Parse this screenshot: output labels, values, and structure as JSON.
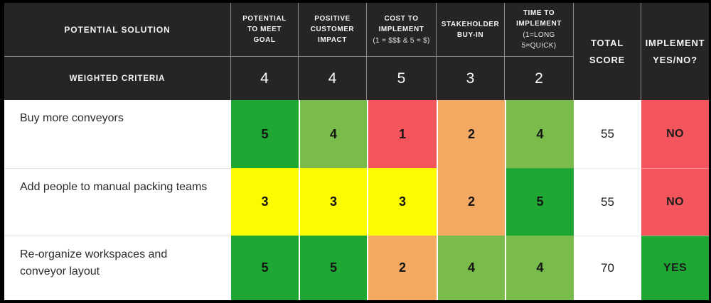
{
  "colors": {
    "header_bg": "#272425",
    "header_line": "#8d8b8b",
    "green": "#1ea733",
    "light_green": "#7abc4b",
    "yellow": "#fdfb00",
    "orange": "#f4a963",
    "red": "#f4555c"
  },
  "header": {
    "solution_label": "POTENTIAL SOLUTION",
    "weighted_label": "WEIGHTED CRITERIA",
    "total_label": "TOTAL SCORE",
    "implement_label": "IMPLEMENT YES/NO?"
  },
  "chart_data": {
    "type": "table",
    "title": "Weighted decision matrix",
    "columns": [
      "POTENTIAL SOLUTION",
      "POTENTIAL TO MEET GOAL",
      "POSITIVE CUSTOMER IMPACT",
      "COST TO IMPLEMENT (1 = $$$ & 5 = $)",
      "STAKEHOLDER BUY-IN",
      "TIME TO IMPLEMENT (1=LONG 5=QUICK)",
      "TOTAL SCORE",
      "IMPLEMENT YES/NO?"
    ],
    "criteria": [
      {
        "label": "POTENTIAL TO MEET GOAL",
        "note": "",
        "weight": "4"
      },
      {
        "label": "POSITIVE CUSTOMER IMPACT",
        "note": "",
        "weight": "4"
      },
      {
        "label": "COST TO IMPLEMENT",
        "note": "(1 = $$$ & 5 = $)",
        "weight": "5"
      },
      {
        "label": "STAKEHOLDER BUY-IN",
        "note": "",
        "weight": "3"
      },
      {
        "label": "TIME TO IMPLEMENT",
        "note": "(1=LONG 5=QUICK)",
        "weight": "2"
      }
    ],
    "solutions": [
      {
        "name": "Buy more conveyors",
        "scores": [
          {
            "value": "5",
            "color": "green"
          },
          {
            "value": "4",
            "color": "light_green"
          },
          {
            "value": "1",
            "color": "red"
          },
          {
            "value": "2",
            "color": "orange"
          },
          {
            "value": "4",
            "color": "light_green"
          }
        ],
        "total": "55",
        "decision": "NO",
        "decision_color": "red"
      },
      {
        "name": "Add people to manual packing teams",
        "scores": [
          {
            "value": "3",
            "color": "yellow"
          },
          {
            "value": "3",
            "color": "yellow"
          },
          {
            "value": "3",
            "color": "yellow"
          },
          {
            "value": "2",
            "color": "orange"
          },
          {
            "value": "5",
            "color": "green"
          }
        ],
        "total": "55",
        "decision": "NO",
        "decision_color": "red"
      },
      {
        "name": "Re-organize workspaces and conveyor layout",
        "scores": [
          {
            "value": "5",
            "color": "green"
          },
          {
            "value": "5",
            "color": "green"
          },
          {
            "value": "2",
            "color": "orange"
          },
          {
            "value": "4",
            "color": "light_green"
          },
          {
            "value": "4",
            "color": "light_green"
          }
        ],
        "total": "70",
        "decision": "YES",
        "decision_color": "green"
      }
    ]
  }
}
